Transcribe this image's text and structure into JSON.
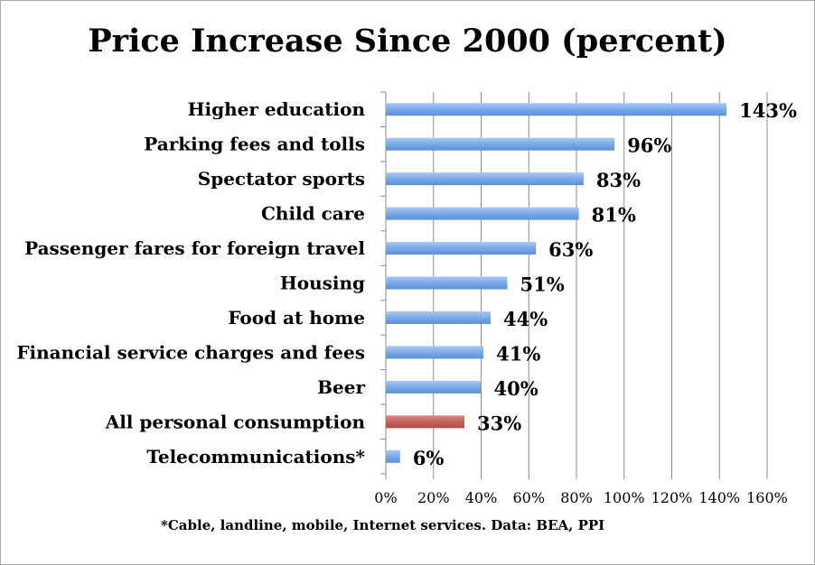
{
  "chart_data": {
    "type": "bar",
    "orientation": "horizontal",
    "title": "Price Increase Since 2000 (percent)",
    "categories": [
      "Higher education",
      "Parking fees and tolls",
      "Spectator sports",
      "Child care",
      "Passenger fares for foreign travel",
      "Housing",
      "Food at home",
      "Financial service charges and fees",
      "Beer",
      "All personal consumption",
      "Telecommunications*"
    ],
    "values": [
      143,
      96,
      83,
      81,
      63,
      51,
      44,
      41,
      40,
      33,
      6
    ],
    "data_labels": [
      "143%",
      "96%",
      "83%",
      "81%",
      "63%",
      "51%",
      "44%",
      "41%",
      "40%",
      "33%",
      "6%"
    ],
    "xlim": [
      0,
      160
    ],
    "xticks": [
      0,
      20,
      40,
      60,
      80,
      100,
      120,
      140,
      160
    ],
    "xtick_labels": [
      "0%",
      "20%",
      "40%",
      "60%",
      "80%",
      "100%",
      "120%",
      "140%",
      "160%"
    ],
    "xlabel": "",
    "ylabel": "",
    "grid": "vertical",
    "legend": "none",
    "colors": {
      "bar": "#7aaae8",
      "highlight_bar": "#c9605a",
      "grid": "#8c8c8c"
    },
    "highlight_category": "All personal consumption",
    "footnote": "*Cable, landline, mobile, Internet services. Data: BEA, PPI"
  }
}
